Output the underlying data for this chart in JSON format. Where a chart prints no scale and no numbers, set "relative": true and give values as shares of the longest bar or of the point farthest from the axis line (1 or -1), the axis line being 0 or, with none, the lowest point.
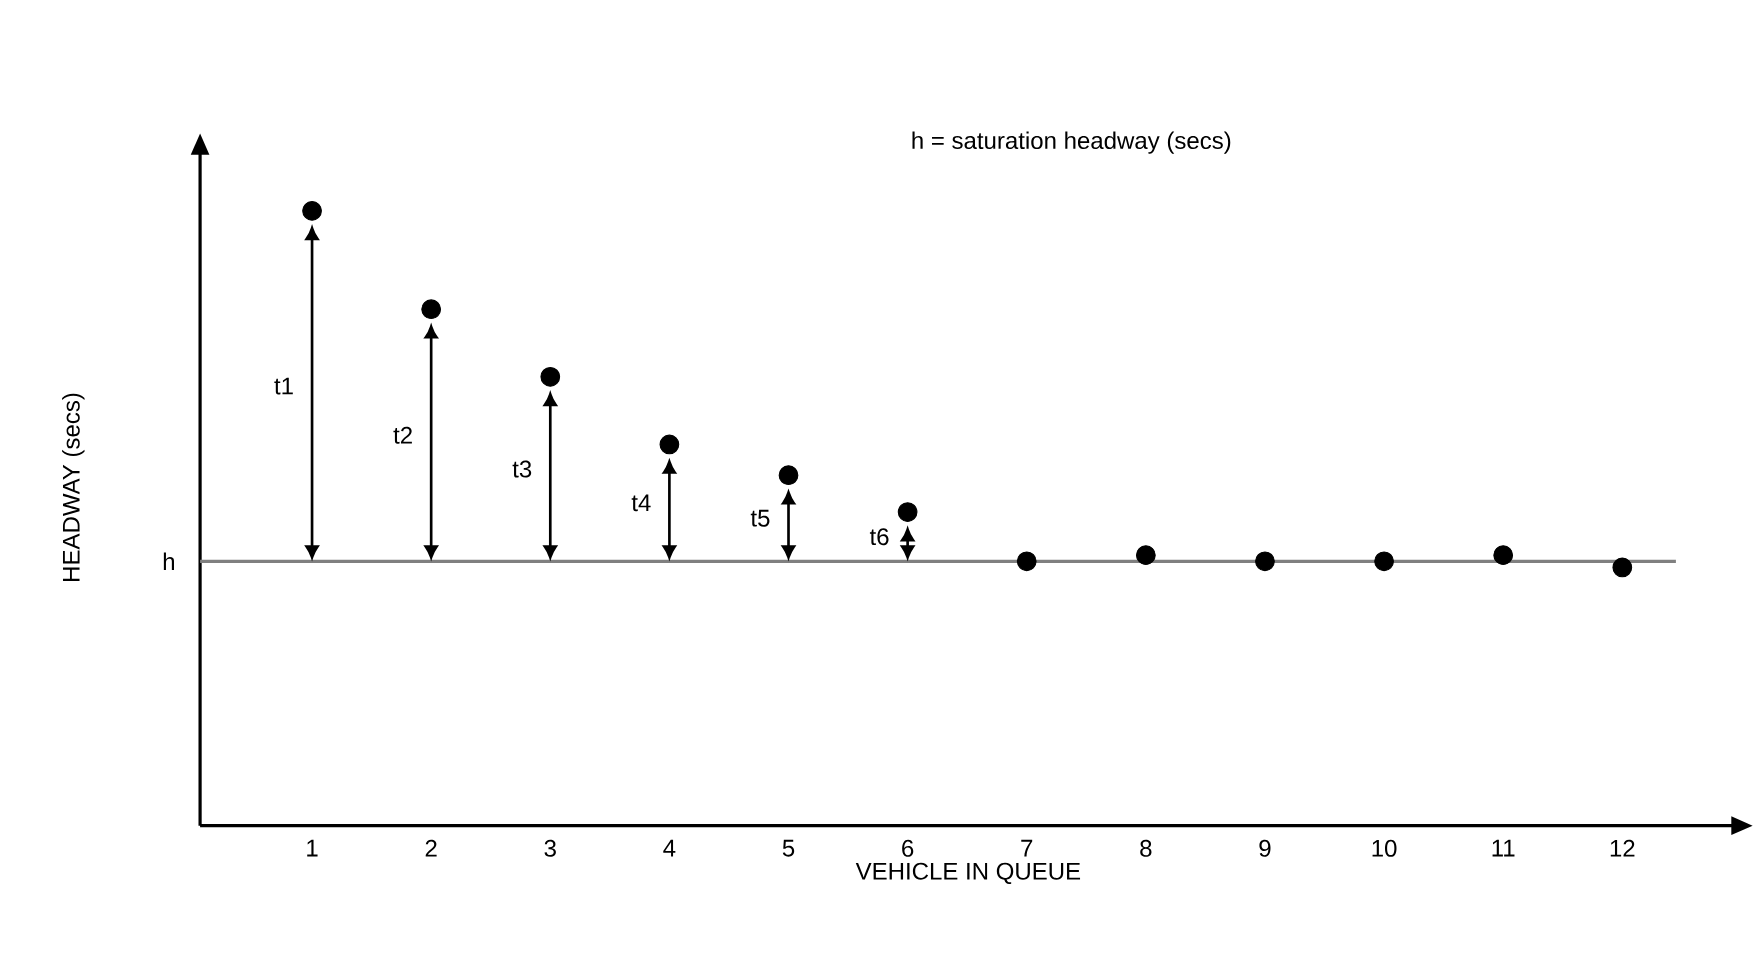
{
  "chart_data": {
    "type": "scatter",
    "relative": true,
    "xlabel": "VEHICLE IN QUEUE",
    "ylabel": "HEADWAY (secs)",
    "categories": [
      "1",
      "2",
      "3",
      "4",
      "5",
      "6",
      "7",
      "8",
      "9",
      "10",
      "11",
      "12"
    ],
    "values": [
      1.0,
      0.84,
      0.73,
      0.62,
      0.57,
      0.51,
      0.43,
      0.44,
      0.43,
      0.43,
      0.44,
      0.42
    ],
    "color": "#000000",
    "tick_labels": "x",
    "ref_lines": [
      {
        "axis": "y",
        "value": 0.43,
        "label": "h",
        "color": "#808080"
      }
    ],
    "annotations": [
      "h = saturation headway (secs)",
      "t1",
      "t2",
      "t3",
      "t4",
      "t5",
      "t6"
    ]
  }
}
